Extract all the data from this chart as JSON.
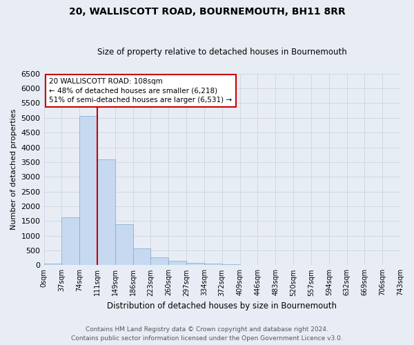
{
  "title": "20, WALLISCOTT ROAD, BOURNEMOUTH, BH11 8RR",
  "subtitle": "Size of property relative to detached houses in Bournemouth",
  "xlabel": "Distribution of detached houses by size in Bournemouth",
  "ylabel": "Number of detached properties",
  "footer_line1": "Contains HM Land Registry data © Crown copyright and database right 2024.",
  "footer_line2": "Contains public sector information licensed under the Open Government Licence v3.0.",
  "bin_labels": [
    "0sqm",
    "37sqm",
    "74sqm",
    "111sqm",
    "149sqm",
    "186sqm",
    "223sqm",
    "260sqm",
    "297sqm",
    "334sqm",
    "372sqm",
    "409sqm",
    "446sqm",
    "483sqm",
    "520sqm",
    "557sqm",
    "594sqm",
    "632sqm",
    "669sqm",
    "706sqm",
    "743sqm"
  ],
  "bar_values": [
    60,
    1620,
    5060,
    3590,
    1400,
    560,
    260,
    150,
    80,
    60,
    40,
    0,
    0,
    0,
    0,
    0,
    0,
    0,
    0,
    0
  ],
  "bar_color": "#c6d9f0",
  "bar_edge_color": "#7aaad0",
  "vline_x": 3,
  "vline_color": "#cc0000",
  "ylim": [
    0,
    6500
  ],
  "yticks": [
    0,
    500,
    1000,
    1500,
    2000,
    2500,
    3000,
    3500,
    4000,
    4500,
    5000,
    5500,
    6000,
    6500
  ],
  "annotation_text": "20 WALLISCOTT ROAD: 108sqm\n← 48% of detached houses are smaller (6,218)\n51% of semi-detached houses are larger (6,531) →",
  "annotation_box_color": "#ffffff",
  "annotation_box_edge": "#cc0000",
  "grid_color": "#cdd5e0",
  "bg_color": "#e8edf5",
  "title_fontsize": 10,
  "subtitle_fontsize": 8.5,
  "ylabel_fontsize": 8,
  "xlabel_fontsize": 8.5,
  "footer_fontsize": 6.5,
  "ytick_fontsize": 8,
  "xtick_fontsize": 7
}
